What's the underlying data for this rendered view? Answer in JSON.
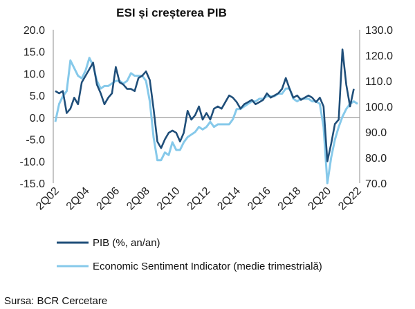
{
  "chart_data": {
    "type": "line",
    "title": "ESI și creșterea PIB",
    "source": "Sursa: BCR Cercetare",
    "xticks": [
      "2Q02",
      "2Q04",
      "2Q06",
      "2Q08",
      "2Q10",
      "2Q12",
      "2Q14",
      "2Q16",
      "2Q18",
      "2Q20",
      "2Q22"
    ],
    "left_axis": {
      "min": -15,
      "max": 20,
      "step": 5,
      "tick_labels": [
        "-15.0",
        "-10.0",
        "-5.0",
        "0.0",
        "5.0",
        "10.0",
        "15.0",
        "20.0"
      ]
    },
    "right_axis": {
      "min": 70,
      "max": 130,
      "step": 10,
      "tick_labels": [
        "70.0",
        "80.0",
        "90.0",
        "100.0",
        "110.0",
        "120.0",
        "130.0"
      ]
    },
    "legend_placement": "bottom",
    "series": [
      {
        "name": "PIB (%, an/an)",
        "axis": "left",
        "color": "#1f4e79",
        "x": [
          "2Q02",
          "3Q02",
          "4Q02",
          "1Q03",
          "2Q03",
          "3Q03",
          "4Q03",
          "1Q04",
          "2Q04",
          "3Q04",
          "4Q04",
          "1Q05",
          "2Q05",
          "3Q05",
          "4Q05",
          "1Q06",
          "2Q06",
          "3Q06",
          "4Q06",
          "1Q07",
          "2Q07",
          "3Q07",
          "4Q07",
          "1Q08",
          "2Q08",
          "3Q08",
          "4Q08",
          "1Q09",
          "2Q09",
          "3Q09",
          "4Q09",
          "1Q10",
          "2Q10",
          "3Q10",
          "4Q10",
          "1Q11",
          "2Q11",
          "3Q11",
          "4Q11",
          "1Q12",
          "2Q12",
          "3Q12",
          "4Q12",
          "1Q13",
          "2Q13",
          "3Q13",
          "4Q13",
          "1Q14",
          "2Q14",
          "3Q14",
          "4Q14",
          "1Q15",
          "2Q15",
          "3Q15",
          "4Q15",
          "1Q16",
          "2Q16",
          "3Q16",
          "4Q16",
          "1Q17",
          "2Q17",
          "3Q17",
          "4Q17",
          "1Q18",
          "2Q18",
          "3Q18",
          "4Q18",
          "1Q19",
          "2Q19",
          "3Q19",
          "4Q19",
          "1Q20",
          "2Q20",
          "3Q20",
          "4Q20",
          "1Q21",
          "2Q21",
          "3Q21",
          "4Q21",
          "1Q22",
          "2Q22"
        ],
        "values": [
          6.0,
          5.5,
          6.0,
          1.0,
          2.0,
          4.5,
          3.0,
          8.0,
          9.5,
          11.0,
          12.5,
          7.5,
          5.5,
          3.0,
          4.5,
          5.5,
          11.5,
          8.0,
          7.5,
          6.5,
          6.5,
          6.0,
          9.0,
          9.5,
          10.5,
          8.5,
          2.0,
          -5.5,
          -7.0,
          -5.0,
          -3.5,
          -3.0,
          -3.5,
          -5.5,
          -3.5,
          1.5,
          -0.5,
          0.5,
          2.5,
          -0.5,
          1.0,
          -0.5,
          2.0,
          2.5,
          2.0,
          3.5,
          5.0,
          4.5,
          3.5,
          2.0,
          3.0,
          3.5,
          4.0,
          3.0,
          3.5,
          4.0,
          5.5,
          4.5,
          5.0,
          5.5,
          6.5,
          9.0,
          6.5,
          4.5,
          5.0,
          4.0,
          4.5,
          5.0,
          4.5,
          3.5,
          4.5,
          2.5,
          -10.0,
          -6.0,
          -1.5,
          -0.5,
          15.5,
          7.5,
          2.5,
          6.5,
          null
        ]
      },
      {
        "name": "Economic Sentiment Indicator (medie trimestrială)",
        "axis": "right",
        "color": "#86c9ea",
        "x": [
          "2Q02",
          "3Q02",
          "4Q02",
          "1Q03",
          "2Q03",
          "3Q03",
          "4Q03",
          "1Q04",
          "2Q04",
          "3Q04",
          "4Q04",
          "1Q05",
          "2Q05",
          "3Q05",
          "4Q05",
          "1Q06",
          "2Q06",
          "3Q06",
          "4Q06",
          "1Q07",
          "2Q07",
          "3Q07",
          "4Q07",
          "1Q08",
          "2Q08",
          "3Q08",
          "4Q08",
          "1Q09",
          "2Q09",
          "3Q09",
          "4Q09",
          "1Q10",
          "2Q10",
          "3Q10",
          "4Q10",
          "1Q11",
          "2Q11",
          "3Q11",
          "4Q11",
          "1Q12",
          "2Q12",
          "3Q12",
          "4Q12",
          "1Q13",
          "2Q13",
          "3Q13",
          "4Q13",
          "1Q14",
          "2Q14",
          "3Q14",
          "4Q14",
          "1Q15",
          "2Q15",
          "3Q15",
          "4Q15",
          "1Q16",
          "2Q16",
          "3Q16",
          "4Q16",
          "1Q17",
          "2Q17",
          "3Q17",
          "4Q17",
          "1Q18",
          "2Q18",
          "3Q18",
          "4Q18",
          "1Q19",
          "2Q19",
          "3Q19",
          "4Q19",
          "1Q20",
          "2Q20",
          "3Q20",
          "4Q20",
          "1Q21",
          "2Q21",
          "3Q21",
          "4Q21",
          "1Q22",
          "2Q22"
        ],
        "values": [
          94,
          101,
          104,
          106,
          118,
          115,
          112,
          111,
          114,
          119,
          116,
          110,
          107,
          108,
          108,
          109,
          110,
          110,
          109,
          110,
          113,
          112,
          112,
          112,
          110,
          102,
          88,
          79,
          79,
          82,
          81,
          86,
          83,
          83,
          86,
          88,
          89,
          90,
          92,
          91,
          92,
          94,
          92,
          93,
          93,
          93,
          93,
          95,
          99,
          99,
          100,
          101,
          102,
          102,
          103,
          103,
          104,
          104,
          104,
          105,
          105,
          107,
          107,
          103,
          102,
          103,
          103,
          103,
          102,
          102,
          101,
          92,
          70,
          80,
          87,
          92,
          96,
          99,
          101,
          102,
          101
        ]
      }
    ]
  }
}
